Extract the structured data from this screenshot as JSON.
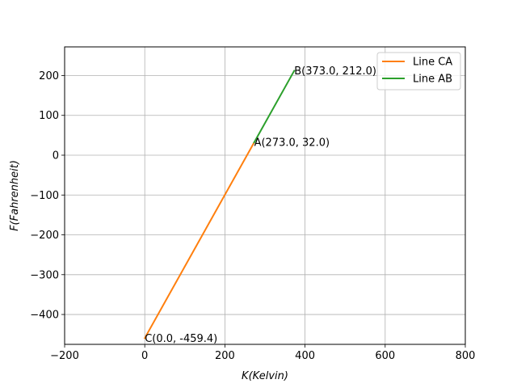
{
  "chart_data": {
    "type": "line",
    "xlabel": "K(Kelvin)",
    "ylabel": "F(Fahrenheit)",
    "xlim": [
      -200,
      800
    ],
    "ylim": [
      -475,
      272
    ],
    "xticks": [
      -200,
      0,
      200,
      400,
      600,
      800
    ],
    "yticks": [
      -400,
      -300,
      -200,
      -100,
      0,
      100,
      200
    ],
    "xtick_labels": [
      "−200",
      "0",
      "200",
      "400",
      "600",
      "800"
    ],
    "ytick_labels": [
      "−400",
      "−300",
      "−200",
      "−100",
      "0",
      "100",
      "200"
    ],
    "grid": true,
    "legend_position": "top-right",
    "series": [
      {
        "name": "Line CA",
        "color": "#ff7f0e",
        "points": [
          [
            0.0,
            -459.4
          ],
          [
            273.0,
            32.0
          ]
        ]
      },
      {
        "name": "Line AB",
        "color": "#2ca02c",
        "points": [
          [
            273.0,
            32.0
          ],
          [
            373.0,
            212.0
          ]
        ]
      }
    ],
    "annotations": [
      {
        "text": "C(0.0, -459.4)",
        "x": 0.0,
        "y": -459.4
      },
      {
        "text": "A(273.0, 32.0)",
        "x": 273.0,
        "y": 32.0
      },
      {
        "text": "B(373.0, 212.0)",
        "x": 373.0,
        "y": 212.0
      }
    ]
  }
}
